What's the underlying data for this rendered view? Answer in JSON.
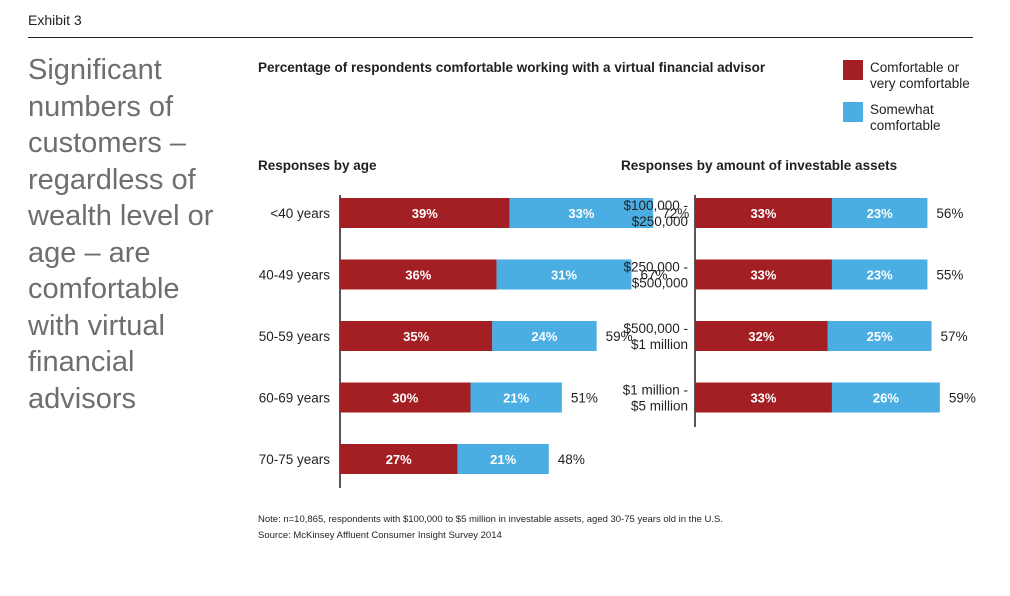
{
  "exhibit_label": "Exhibit 3",
  "headline": "Significant numbers of customers – regardless of wealth level or age – are comfortable with virtual financial advisors",
  "chart_title": "Percentage of respondents comfortable working with a virtual financial advisor",
  "legend": [
    {
      "label": "Comfortable or very comfortable",
      "color": "#a31f24"
    },
    {
      "label": "Somewhat comfortable",
      "color": "#4aaee3"
    }
  ],
  "chart_data": [
    {
      "type": "bar",
      "orientation": "horizontal",
      "stacked": true,
      "title": "Responses by age",
      "categories": [
        "<40 years",
        "40-49 years",
        "50-59 years",
        "60-69 years",
        "70-75 years"
      ],
      "series": [
        {
          "name": "Comfortable or very comfortable",
          "values": [
            39,
            36,
            35,
            30,
            27
          ]
        },
        {
          "name": "Somewhat comfortable",
          "values": [
            33,
            31,
            24,
            21,
            21
          ]
        }
      ],
      "totals": [
        72,
        67,
        59,
        51,
        48
      ],
      "unit": "%"
    },
    {
      "type": "bar",
      "orientation": "horizontal",
      "stacked": true,
      "title": "Responses by amount of investable assets",
      "categories": [
        [
          "$100,000 -",
          "$250,000"
        ],
        [
          "$250,000 -",
          "$500,000"
        ],
        [
          "$500,000 -",
          "$1 million"
        ],
        [
          "$1 million -",
          "$5 million"
        ]
      ],
      "series": [
        {
          "name": "Comfortable or very comfortable",
          "values": [
            33,
            33,
            32,
            33
          ]
        },
        {
          "name": "Somewhat comfortable",
          "values": [
            23,
            23,
            25,
            26
          ]
        }
      ],
      "totals": [
        56,
        55,
        57,
        59
      ],
      "unit": "%"
    }
  ],
  "note": "Note: n=10,865, respondents with $100,000 to $5 million in investable assets, aged 30-75 years old in the U.S.",
  "source": "Source: McKinsey Affluent Consumer Insight Survey 2014"
}
